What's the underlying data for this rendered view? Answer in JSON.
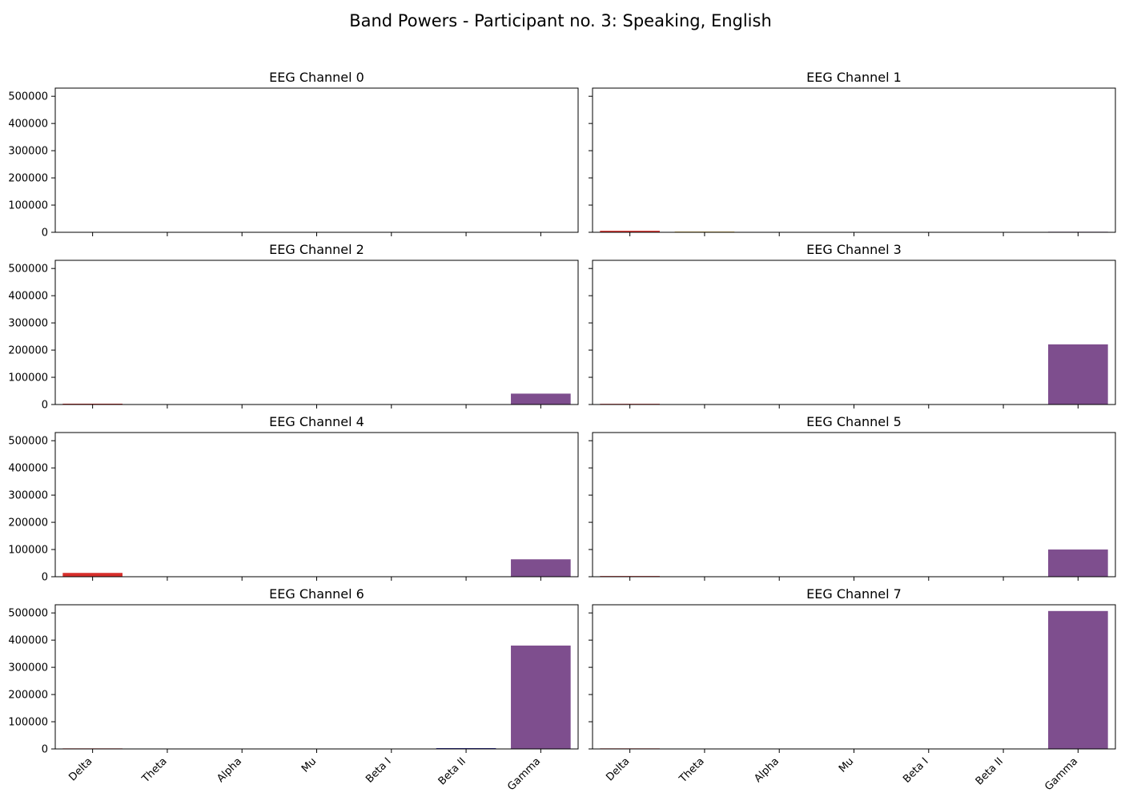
{
  "figure": {
    "title": "Band Powers - Participant no. 3: Speaking, English"
  },
  "chart_data": {
    "type": "bar",
    "shared_y": true,
    "ylim": [
      0,
      530000
    ],
    "yticks": [
      0,
      100000,
      200000,
      300000,
      400000,
      500000
    ],
    "ytick_labels": [
      "0",
      "100000",
      "200000",
      "300000",
      "400000",
      "500000"
    ],
    "categories": [
      "Delta",
      "Theta",
      "Alpha",
      "Mu",
      "Beta I",
      "Beta II",
      "Gamma"
    ],
    "bar_colors": [
      "#d62f2c",
      "#d4a72c",
      "#3d9d3a",
      "#2c9d9d",
      "#2c73b8",
      "#2c2ca0",
      "#7e4e8e"
    ],
    "grid": false,
    "legend": "none",
    "panels": [
      {
        "title": "EEG Channel 0",
        "values": [
          300,
          100,
          50,
          30,
          20,
          30,
          200
        ]
      },
      {
        "title": "EEG Channel 1",
        "values": [
          5500,
          2500,
          300,
          200,
          150,
          100,
          2000
        ]
      },
      {
        "title": "EEG Channel 2",
        "values": [
          3000,
          500,
          100,
          80,
          50,
          150,
          40000
        ]
      },
      {
        "title": "EEG Channel 3",
        "values": [
          2500,
          400,
          100,
          80,
          50,
          100,
          221000
        ]
      },
      {
        "title": "EEG Channel 4",
        "values": [
          14000,
          800,
          200,
          150,
          100,
          200,
          64000
        ]
      },
      {
        "title": "EEG Channel 5",
        "values": [
          2500,
          300,
          100,
          80,
          50,
          100,
          100000
        ]
      },
      {
        "title": "EEG Channel 6",
        "values": [
          2000,
          300,
          100,
          80,
          100,
          3000,
          380000
        ]
      },
      {
        "title": "EEG Channel 7",
        "values": [
          2000,
          300,
          100,
          80,
          50,
          100,
          507000
        ]
      }
    ]
  }
}
